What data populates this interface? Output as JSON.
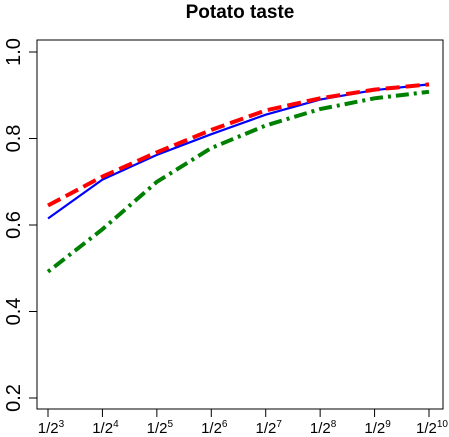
{
  "chart_data": {
    "type": "line",
    "title": "Potato taste",
    "xlabel": "",
    "ylabel": "",
    "x": [
      "1/2^3",
      "1/2^4",
      "1/2^5",
      "1/2^6",
      "1/2^7",
      "1/2^8",
      "1/2^9",
      "1/2^10"
    ],
    "x_ticks": [
      {
        "base": "1/2",
        "exp": "3"
      },
      {
        "base": "1/2",
        "exp": "4"
      },
      {
        "base": "1/2",
        "exp": "5"
      },
      {
        "base": "1/2",
        "exp": "6"
      },
      {
        "base": "1/2",
        "exp": "7"
      },
      {
        "base": "1/2",
        "exp": "8"
      },
      {
        "base": "1/2",
        "exp": "9"
      },
      {
        "base": "1/2",
        "exp": "10"
      }
    ],
    "ylim": [
      0.2,
      1.0
    ],
    "yticks": [
      "0.2",
      "0.4",
      "0.6",
      "0.8",
      "1.0"
    ],
    "grid": false,
    "legend": "none",
    "series": [
      {
        "values": [
          0.615,
          0.705,
          0.762,
          0.81,
          0.855,
          0.89,
          0.912,
          0.925
        ],
        "color": "#0000ff",
        "style": "solid"
      },
      {
        "values": [
          0.645,
          0.712,
          0.768,
          0.82,
          0.865,
          0.893,
          0.913,
          0.925
        ],
        "color": "#ff0000",
        "style": "dashed"
      },
      {
        "values": [
          0.492,
          0.59,
          0.7,
          0.778,
          0.83,
          0.868,
          0.893,
          0.908
        ],
        "color": "#008000",
        "style": "dotdash"
      }
    ]
  }
}
